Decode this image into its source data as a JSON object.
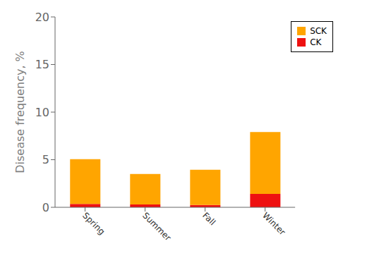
{
  "chart_data": {
    "type": "bar",
    "stacked": true,
    "categories": [
      "Spring",
      "Summer",
      "Fall",
      "Winter"
    ],
    "series": [
      {
        "name": "SCK",
        "color": "#FFA500",
        "values": [
          4.7,
          3.2,
          3.7,
          6.5
        ]
      },
      {
        "name": "CK",
        "color": "#EE1111",
        "values": [
          0.35,
          0.3,
          0.25,
          1.4
        ]
      }
    ],
    "ylabel": "Disease frequency, %",
    "ylim": [
      0,
      20
    ],
    "yticks": [
      0,
      5,
      10,
      15,
      20
    ],
    "legend": "upper right"
  }
}
